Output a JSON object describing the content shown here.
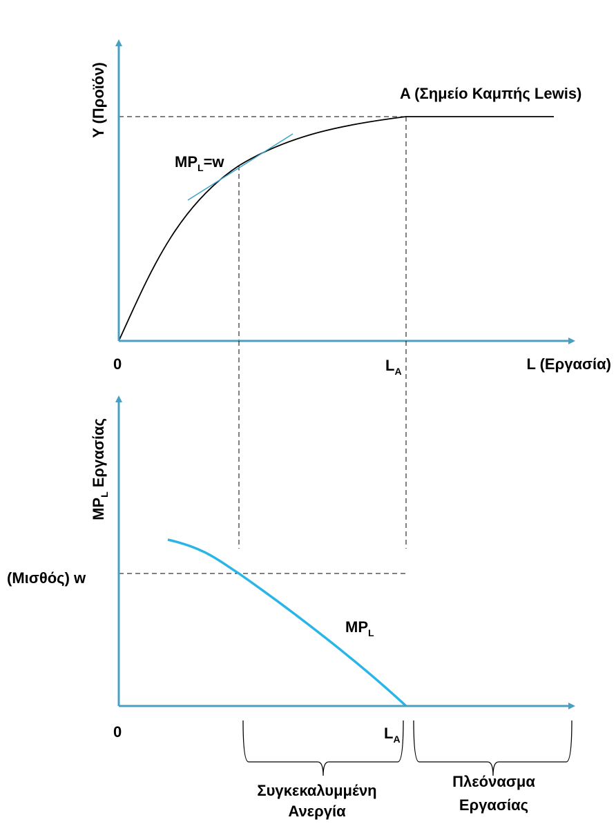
{
  "colors": {
    "axis": "#4a9fc0",
    "curve": "#000000",
    "mpl_curve": "#29b6e6",
    "tangent": "#3aa4c8",
    "guide": "#000000",
    "text": "#000000"
  },
  "top_panel": {
    "y_axis_label": "Y (Προϊόν)",
    "x_axis_label": "L (Εργασία)",
    "origin_label": "0",
    "la_label_main": "L",
    "la_label_sub": "A",
    "point_a_label": "A (Σημείο Καμπής Lewis)",
    "tangent_label_main": "MP",
    "tangent_label_sub": "L",
    "tangent_label_rest": "=w"
  },
  "bottom_panel": {
    "y_axis_label_main": "MP",
    "y_axis_label_sub": "L",
    "y_axis_label_rest": "  Εργασίας",
    "wage_label": "(Μισθός) w",
    "origin_label": "0",
    "la_label_main": "L",
    "la_label_sub": "A",
    "curve_label_main": "MP",
    "curve_label_sub": "L",
    "bracket_left_line1": "Συγκεκαλυμμένη",
    "bracket_left_line2": "Ανεργία",
    "bracket_right_line1": "Πλεόνασμα",
    "bracket_right_line2": "Εργασίας"
  }
}
